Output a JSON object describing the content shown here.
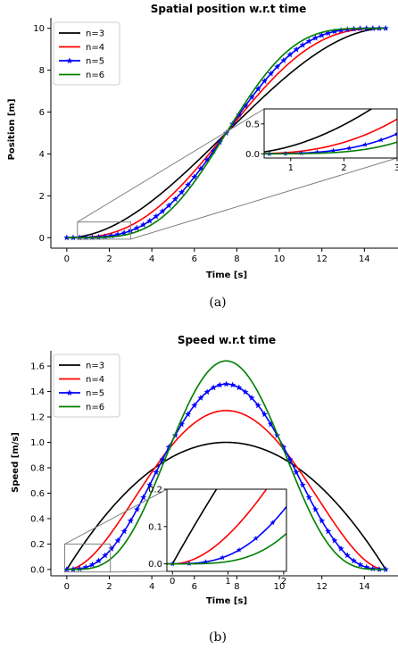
{
  "chart_data": [
    {
      "type": "line",
      "title": "Spatial position w.r.t time",
      "xlabel": "Time [s]",
      "ylabel": "Position [m]",
      "caption": "(a)",
      "xlim": [
        -0.75,
        15.75
      ],
      "ylim": [
        -0.5,
        10.5
      ],
      "xticks": [
        0,
        2,
        4,
        6,
        8,
        10,
        12,
        14
      ],
      "yticks": [
        0,
        2,
        4,
        6,
        8,
        10
      ],
      "legend": "top-left",
      "series": [
        {
          "name": "n=3",
          "color": "#000000",
          "marker": "none"
        },
        {
          "name": "n=4",
          "color": "#ff0000",
          "marker": "none"
        },
        {
          "name": "n=5",
          "color": "#0000ff",
          "marker": "star"
        },
        {
          "name": "n=6",
          "color": "#008000",
          "marker": "none"
        }
      ],
      "inset": {
        "xlim": [
          0.5,
          3.0
        ],
        "ylim": [
          -0.07,
          0.75
        ],
        "xticks": [
          1,
          2,
          3
        ],
        "yticks": [
          0.0,
          0.5
        ]
      }
    },
    {
      "type": "line",
      "title": "Speed w.r.t time",
      "xlabel": "Time [s]",
      "ylabel": "Speed [m/s]",
      "caption": "(b)",
      "xlim": [
        -0.75,
        15.75
      ],
      "ylim": [
        -0.05,
        1.72
      ],
      "xticks": [
        0,
        2,
        4,
        6,
        8,
        10,
        12,
        14
      ],
      "yticks": [
        0.0,
        0.2,
        0.4,
        0.6,
        0.8,
        1.0,
        1.2,
        1.4,
        1.6
      ],
      "legend": "top-left",
      "series": [
        {
          "name": "n=3",
          "color": "#000000",
          "marker": "none"
        },
        {
          "name": "n=4",
          "color": "#ff0000",
          "marker": "none"
        },
        {
          "name": "n=5",
          "color": "#0000ff",
          "marker": "star"
        },
        {
          "name": "n=6",
          "color": "#008000",
          "marker": "none"
        }
      ],
      "inset": {
        "xlim": [
          -0.1,
          2.05
        ],
        "ylim": [
          -0.02,
          0.2
        ],
        "xticks": [
          0,
          1,
          2
        ],
        "yticks": [
          0.0,
          0.1,
          0.2
        ]
      }
    }
  ]
}
